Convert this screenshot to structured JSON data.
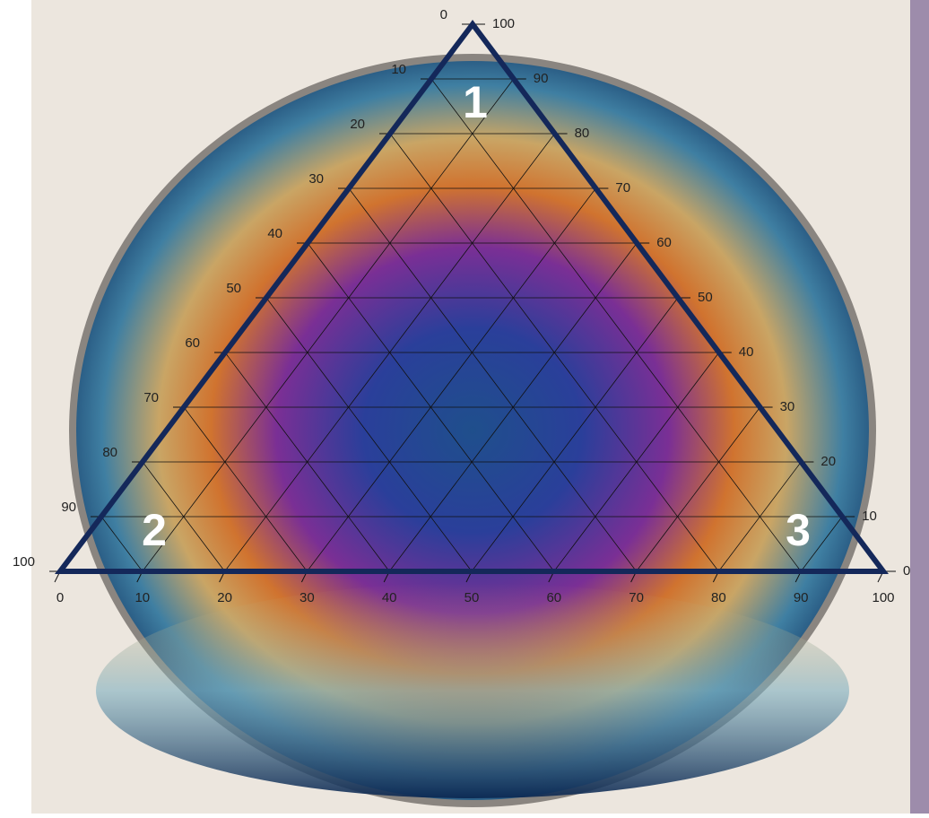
{
  "chart_data": {
    "type": "ternary",
    "corner_labels": [
      "1",
      "2",
      "3"
    ],
    "left_axis": {
      "lim": [
        0,
        100
      ],
      "ticks": [
        0,
        10,
        20,
        30,
        40,
        50,
        60,
        70,
        80,
        90,
        100
      ]
    },
    "right_axis": {
      "lim": [
        0,
        100
      ],
      "ticks": [
        0,
        10,
        20,
        30,
        40,
        50,
        60,
        70,
        80,
        90,
        100
      ]
    },
    "bottom_axis": {
      "lim": [
        0,
        100
      ],
      "ticks": [
        0,
        10,
        20,
        30,
        40,
        50,
        60,
        70,
        80,
        90,
        100
      ]
    },
    "grid": true,
    "frame_color": "#14285a"
  }
}
